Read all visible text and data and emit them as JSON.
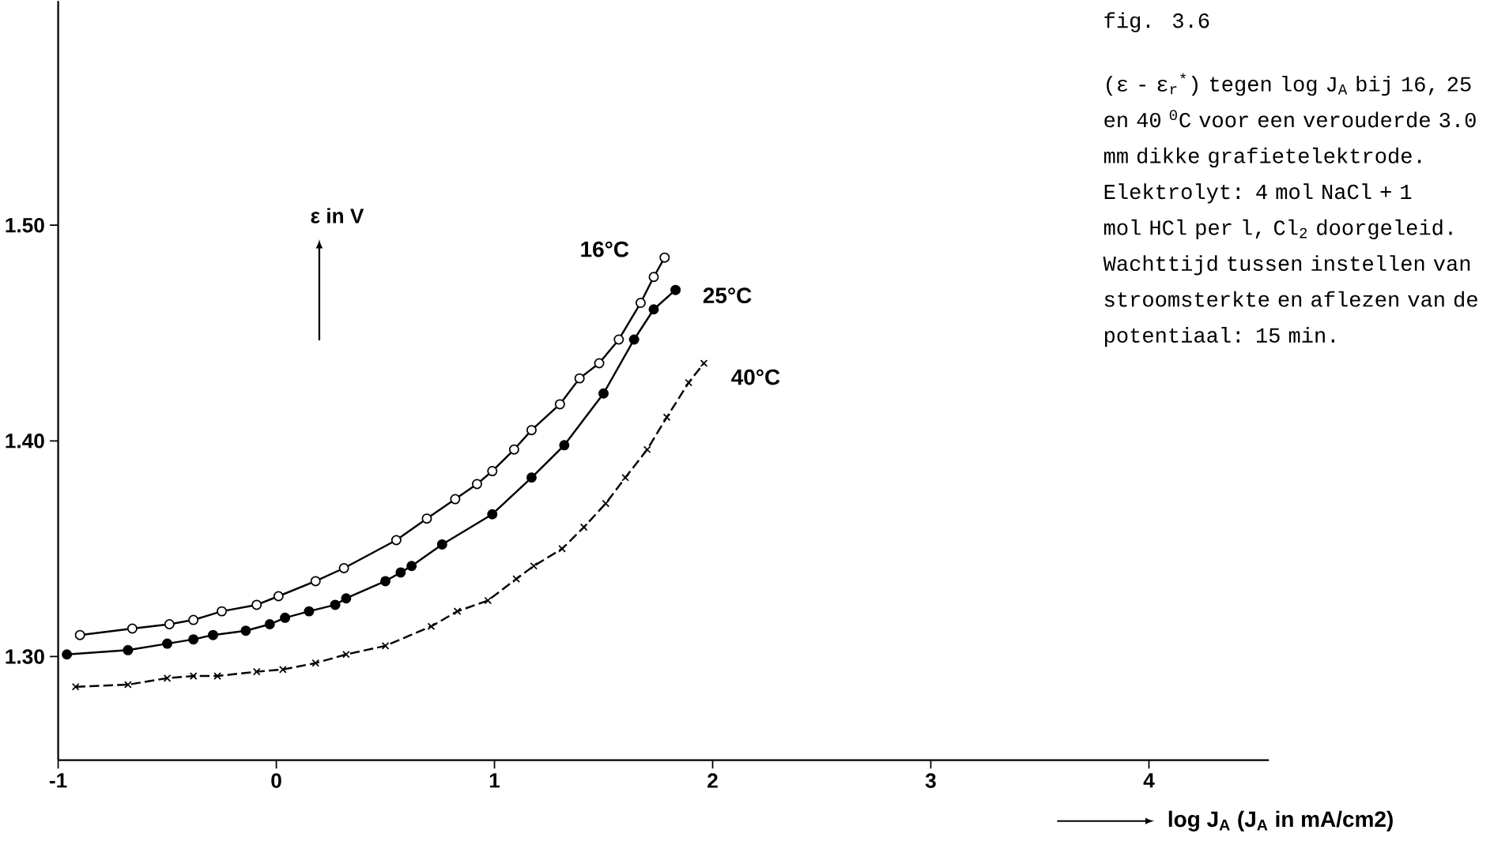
{
  "chart_data": {
    "type": "line",
    "xlabel": "log J$_{A}$  (J$_{A}$ in mA/cm2)",
    "ylabel": "ε in V",
    "annotations": [
      "fig. 3.6",
      "(ε - ε$_{r}$$^{*}$) tegen log J$_{A}$ bij 16, 25 en 40 $^{0}$C voor een verouderde 3.0 mm dikke grafietelektrode.",
      "Elektrolyt: 4 mol NaCl + 1 mol HCl per l, Cl$_{2}$ doorgeleid. Wachttijd tussen instellen van stroomsterkte en aflezen van de potentiaal: 15 min."
    ],
    "xlim": [
      -1,
      4.55
    ],
    "ylim": [
      1.252,
      1.604
    ],
    "xticks": [
      -1,
      0,
      1,
      2,
      3,
      4
    ],
    "yticks": [
      {
        "value": 1.3,
        "label": "1.30"
      },
      {
        "value": 1.4,
        "label": "1.40"
      },
      {
        "value": 1.5,
        "label": "1.50"
      }
    ],
    "grid": false,
    "legend": false,
    "series": [
      {
        "name": "16°C",
        "color": "#000000",
        "marker": "circle",
        "line_style": "solid",
        "x": [
          -0.9,
          -0.66,
          -0.49,
          -0.38,
          -0.25,
          -0.09,
          0.01,
          0.18,
          0.31,
          0.55,
          0.69,
          0.82,
          0.92,
          0.99,
          1.09,
          1.17,
          1.3,
          1.39,
          1.48,
          1.57,
          1.67,
          1.73,
          1.78
        ],
        "values": [
          1.31,
          1.313,
          1.315,
          1.317,
          1.321,
          1.324,
          1.328,
          1.335,
          1.341,
          1.354,
          1.364,
          1.373,
          1.38,
          1.386,
          1.396,
          1.405,
          1.417,
          1.429,
          1.436,
          1.447,
          1.464,
          1.476,
          1.485
        ]
      },
      {
        "name": "25°C",
        "color": "#000000",
        "marker": "circle",
        "line_style": "solid",
        "x": [
          -0.96,
          -0.68,
          -0.5,
          -0.38,
          -0.29,
          -0.14,
          -0.03,
          0.04,
          0.15,
          0.27,
          0.32,
          0.5,
          0.57,
          0.62,
          0.76,
          0.99,
          1.17,
          1.32,
          1.5,
          1.64,
          1.73,
          1.83
        ],
        "values": [
          1.301,
          1.303,
          1.306,
          1.308,
          1.31,
          1.312,
          1.315,
          1.318,
          1.321,
          1.324,
          1.327,
          1.335,
          1.339,
          1.342,
          1.352,
          1.366,
          1.383,
          1.398,
          1.422,
          1.447,
          1.461,
          1.47
        ]
      },
      {
        "name": "40°C",
        "color": "#000000",
        "marker": "cross",
        "line_style": "dashed",
        "x": [
          -0.92,
          -0.68,
          -0.5,
          -0.38,
          -0.27,
          -0.09,
          0.03,
          0.18,
          0.32,
          0.5,
          0.71,
          0.83,
          0.97,
          1.1,
          1.18,
          1.31,
          1.41,
          1.51,
          1.6,
          1.7,
          1.79,
          1.89,
          1.96
        ],
        "values": [
          1.286,
          1.287,
          1.29,
          1.291,
          1.291,
          1.293,
          1.294,
          1.297,
          1.301,
          1.305,
          1.314,
          1.321,
          1.326,
          1.336,
          1.342,
          1.35,
          1.36,
          1.371,
          1.383,
          1.396,
          1.411,
          1.427,
          1.436
        ]
      }
    ]
  }
}
